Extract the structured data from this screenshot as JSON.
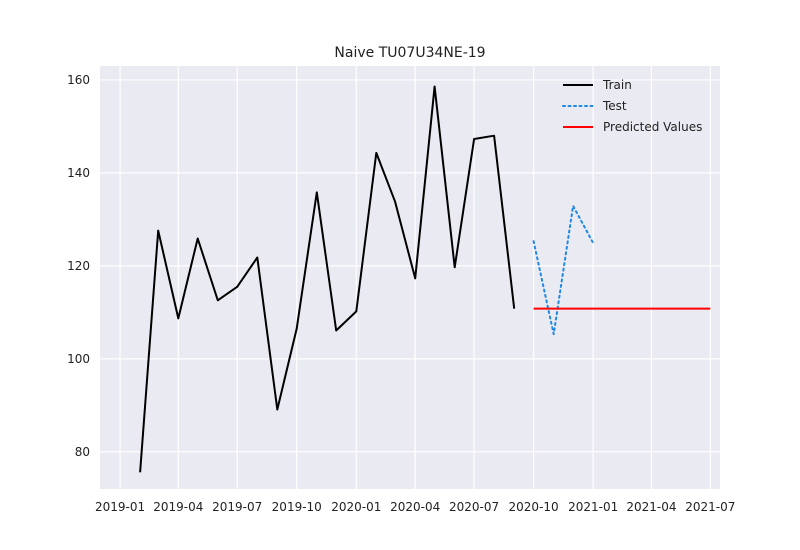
{
  "chart_data": {
    "type": "line",
    "title": "Naive TU07U34NE-19",
    "xlabel": "",
    "ylabel": "",
    "x_type": "date",
    "xlim": [
      "2018-12-01",
      "2021-07-16"
    ],
    "ylim": [
      72,
      163
    ],
    "x_ticks": [
      "2019-01-01",
      "2019-04-01",
      "2019-07-01",
      "2019-10-01",
      "2020-01-01",
      "2020-04-01",
      "2020-07-01",
      "2020-10-01",
      "2021-01-01",
      "2021-04-01",
      "2021-07-01"
    ],
    "x_tick_labels": [
      "2019-01",
      "2019-04",
      "2019-07",
      "2019-10",
      "2020-01",
      "2020-04",
      "2020-07",
      "2020-10",
      "2021-01",
      "2021-04",
      "2021-07"
    ],
    "y_ticks": [
      80,
      100,
      120,
      140,
      160
    ],
    "grid": true,
    "legend_position": "top-right",
    "background_color": "#eaeaf2",
    "series": [
      {
        "name": "Train",
        "color": "#000000",
        "style": "solid",
        "x": [
          "2019-02-01",
          "2019-03-01",
          "2019-04-01",
          "2019-05-01",
          "2019-06-01",
          "2019-07-01",
          "2019-08-01",
          "2019-09-01",
          "2019-10-01",
          "2019-11-01",
          "2019-12-01",
          "2020-01-01",
          "2020-02-01",
          "2020-03-01",
          "2020-04-01",
          "2020-05-01",
          "2020-06-01",
          "2020-07-01",
          "2020-08-01",
          "2020-09-01"
        ],
        "y": [
          75.6,
          127.6,
          108.7,
          125.9,
          112.6,
          115.5,
          121.8,
          89.1,
          106.5,
          135.8,
          106.1,
          110.2,
          144.3,
          133.8,
          117.3,
          158.6,
          119.7,
          147.3,
          148.0,
          110.8
        ]
      },
      {
        "name": "Test",
        "color": "#1e88e5",
        "style": "dotted",
        "x": [
          "2020-10-01",
          "2020-11-01",
          "2020-12-01",
          "2021-01-01"
        ],
        "y": [
          125.3,
          105.3,
          132.9,
          124.9
        ]
      },
      {
        "name": "Predicted Values",
        "color": "#ff0000",
        "style": "solid",
        "x": [
          "2020-10-01",
          "2021-07-01"
        ],
        "y": [
          110.8,
          110.8
        ]
      }
    ]
  }
}
